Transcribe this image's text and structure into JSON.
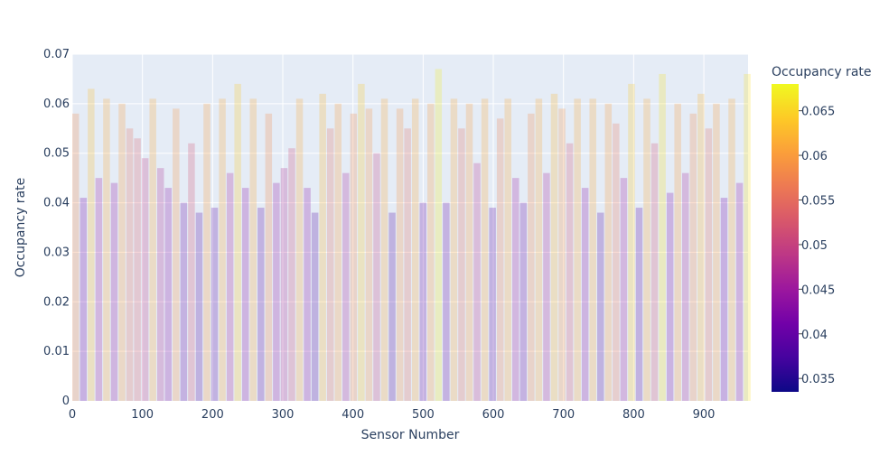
{
  "chart_data": {
    "type": "bar",
    "xlabel": "Sensor Number",
    "ylabel": "Occupancy rate",
    "xlim": [
      0,
      963
    ],
    "ylim": [
      0,
      0.07
    ],
    "x_ticks": [
      0,
      100,
      200,
      300,
      400,
      500,
      600,
      700,
      800,
      900
    ],
    "x_tick_labels": [
      "0",
      "100",
      "200",
      "300",
      "400",
      "500",
      "600",
      "700",
      "800",
      "900"
    ],
    "y_ticks": [
      0,
      0.01,
      0.02,
      0.03,
      0.04,
      0.05,
      0.06,
      0.07
    ],
    "y_tick_labels": [
      "0",
      "0.01",
      "0.02",
      "0.03",
      "0.04",
      "0.05",
      "0.06",
      "0.07"
    ],
    "grid": true,
    "marker_opacity": 0.25,
    "colorbar": {
      "title": "Occupancy rate",
      "range": [
        0.0335,
        0.068
      ],
      "ticks": [
        0.035,
        0.04,
        0.045,
        0.05,
        0.055,
        0.06,
        0.065
      ],
      "tick_labels": [
        "0.035",
        "0.04",
        "0.045",
        "0.05",
        "0.055",
        "0.06",
        "0.065"
      ],
      "colorscale": [
        "#0d0887",
        "#46039f",
        "#7201a8",
        "#9c179e",
        "#bd3786",
        "#d8576b",
        "#ed7953",
        "#fb9f3a",
        "#fdca26",
        "#f0f921"
      ]
    },
    "x": [
      0,
      11,
      22,
      33,
      44,
      55,
      66,
      77,
      88,
      99,
      110,
      121,
      132,
      143,
      154,
      165,
      176,
      187,
      198,
      209,
      220,
      231,
      242,
      253,
      264,
      275,
      286,
      297,
      308,
      319,
      330,
      341,
      352,
      363,
      374,
      385,
      396,
      407,
      418,
      429,
      440,
      451,
      462,
      473,
      484,
      495,
      506,
      517,
      528,
      539,
      550,
      561,
      572,
      583,
      594,
      605,
      616,
      627,
      638,
      649,
      660,
      671,
      682,
      693,
      704,
      715,
      726,
      737,
      748,
      759,
      770,
      781,
      792,
      803,
      814,
      825,
      836,
      847,
      858,
      869,
      880,
      891,
      902,
      913,
      924,
      935,
      946,
      957
    ],
    "values": [
      0.058,
      0.041,
      0.063,
      0.045,
      0.061,
      0.044,
      0.06,
      0.055,
      0.053,
      0.049,
      0.061,
      0.047,
      0.043,
      0.059,
      0.04,
      0.052,
      0.038,
      0.06,
      0.039,
      0.061,
      0.046,
      0.064,
      0.043,
      0.061,
      0.039,
      0.058,
      0.044,
      0.047,
      0.051,
      0.061,
      0.043,
      0.038,
      0.062,
      0.055,
      0.06,
      0.046,
      0.058,
      0.064,
      0.059,
      0.05,
      0.061,
      0.038,
      0.059,
      0.055,
      0.061,
      0.04,
      0.06,
      0.067,
      0.04,
      0.061,
      0.055,
      0.06,
      0.048,
      0.061,
      0.039,
      0.057,
      0.061,
      0.045,
      0.04,
      0.058,
      0.061,
      0.046,
      0.062,
      0.059,
      0.052,
      0.061,
      0.043,
      0.061,
      0.038,
      0.06,
      0.056,
      0.045,
      0.064,
      0.039,
      0.061,
      0.052,
      0.066,
      0.042,
      0.06,
      0.046,
      0.058,
      0.062,
      0.055,
      0.06,
      0.041,
      0.061,
      0.044,
      0.066
    ]
  }
}
